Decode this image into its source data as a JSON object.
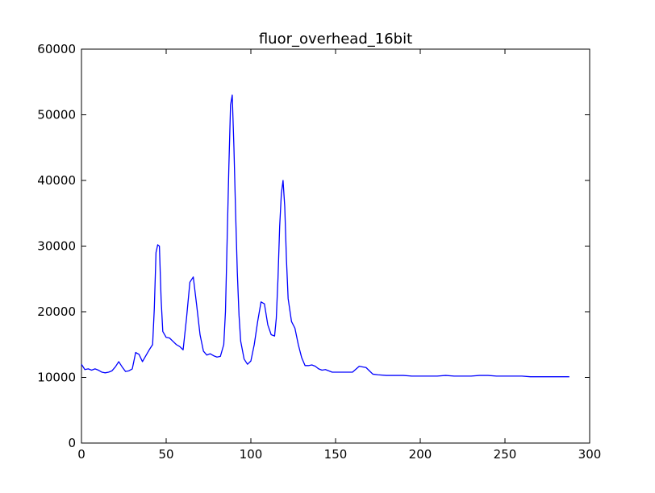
{
  "chart_data": {
    "type": "line",
    "title": "fluor_overhead_16bit",
    "xlabel": "",
    "ylabel": "",
    "xlim": [
      0,
      300
    ],
    "ylim": [
      0,
      60000
    ],
    "xticks": [
      0,
      50,
      100,
      150,
      200,
      250,
      300
    ],
    "yticks": [
      0,
      10000,
      20000,
      30000,
      40000,
      50000,
      60000
    ],
    "xtick_labels": [
      "0",
      "50",
      "100",
      "150",
      "200",
      "250",
      "300"
    ],
    "ytick_labels": [
      "0",
      "10000",
      "20000",
      "30000",
      "40000",
      "50000",
      "60000"
    ],
    "grid": false,
    "line_color": "#0000ff",
    "series": [
      {
        "x": [
          0,
          2,
          4,
          6,
          8,
          10,
          12,
          14,
          16,
          18,
          20,
          22,
          24,
          26,
          28,
          30,
          32,
          34,
          36,
          38,
          40,
          42,
          43,
          44,
          45,
          46,
          47,
          48,
          50,
          52,
          54,
          56,
          58,
          60,
          62,
          64,
          66,
          68,
          70,
          72,
          74,
          76,
          78,
          80,
          82,
          84,
          85,
          86,
          87,
          88,
          89,
          90,
          91,
          92,
          93,
          94,
          96,
          98,
          100,
          102,
          104,
          106,
          108,
          110,
          112,
          114,
          115,
          116,
          117,
          118,
          119,
          120,
          121,
          122,
          124,
          126,
          128,
          130,
          132,
          134,
          136,
          138,
          140,
          142,
          144,
          146,
          148,
          150,
          155,
          160,
          164,
          166,
          168,
          170,
          172,
          175,
          180,
          185,
          190,
          195,
          200,
          205,
          210,
          215,
          220,
          225,
          230,
          235,
          240,
          245,
          250,
          255,
          260,
          265,
          270,
          275,
          280,
          285,
          288
        ],
        "y": [
          12000,
          11200,
          11300,
          11100,
          11300,
          11100,
          10800,
          10700,
          10800,
          11000,
          11600,
          12400,
          11600,
          10900,
          11000,
          11300,
          13800,
          13500,
          12400,
          13300,
          14200,
          15000,
          20500,
          29000,
          30200,
          30000,
          22000,
          17000,
          16100,
          16000,
          15500,
          15000,
          14700,
          14200,
          19000,
          24500,
          25300,
          21000,
          16500,
          14000,
          13400,
          13600,
          13300,
          13100,
          13200,
          15000,
          20000,
          31000,
          42000,
          51500,
          53000,
          45000,
          35000,
          26000,
          19500,
          15500,
          12800,
          12000,
          12500,
          15000,
          18500,
          21500,
          21200,
          18000,
          16500,
          16300,
          19000,
          25000,
          33000,
          38000,
          40000,
          36000,
          28000,
          22000,
          18500,
          17500,
          15000,
          13000,
          11800,
          11800,
          11900,
          11700,
          11300,
          11100,
          11200,
          11000,
          10800,
          10800,
          10800,
          10800,
          11700,
          11600,
          11500,
          11000,
          10500,
          10400,
          10300,
          10300,
          10300,
          10200,
          10200,
          10200,
          10200,
          10300,
          10200,
          10200,
          10200,
          10300,
          10300,
          10200,
          10200,
          10200,
          10200,
          10100,
          10100,
          10100,
          10100,
          10100,
          10100
        ]
      }
    ]
  }
}
